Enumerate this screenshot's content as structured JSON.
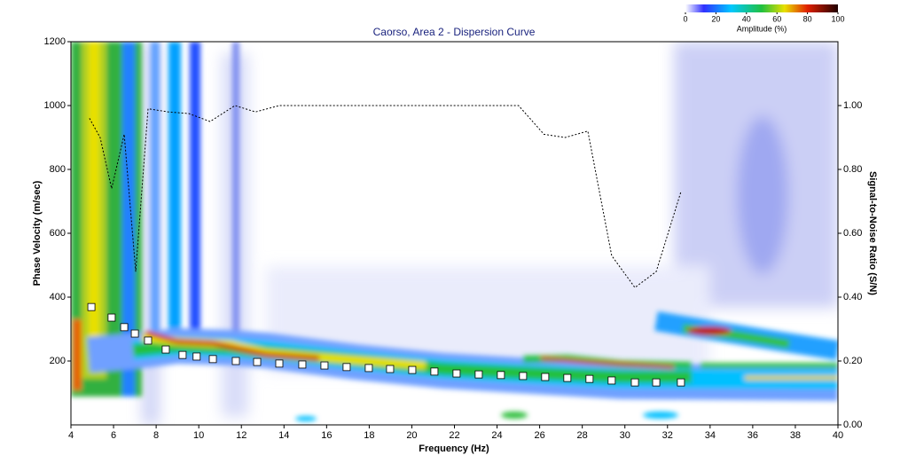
{
  "chart_data": {
    "type": "scatter",
    "title": "Caorso, Area 2 - Dispersion Curve",
    "xlabel": "Frequency (Hz)",
    "ylabel": "Phase Velocity (m/sec)",
    "y2label": "Signal-to-Noise Ratio (S/N)",
    "xlim": [
      4,
      40
    ],
    "xticks": [
      4,
      6,
      8,
      10,
      12,
      14,
      16,
      18,
      20,
      22,
      24,
      26,
      28,
      30,
      32,
      34,
      36,
      38,
      40
    ],
    "ylim": [
      0,
      1200
    ],
    "yticks": [
      200,
      400,
      600,
      800,
      1000,
      1200
    ],
    "y2lim": [
      0,
      1.2
    ],
    "y2ticks": [
      {
        "value": 0,
        "label": "0.00"
      },
      {
        "value": 0.2,
        "label": "0.20"
      },
      {
        "value": 0.4,
        "label": "0.40"
      },
      {
        "value": 0.6,
        "label": "0.60"
      },
      {
        "value": 0.8,
        "label": "0.80"
      },
      {
        "value": 1,
        "label": "1.00"
      }
    ],
    "series": [
      {
        "type": "scatter",
        "color": "#ffffff",
        "x": [
          4.96,
          5.91,
          6.5,
          7.0,
          7.62,
          8.45,
          9.24,
          9.9,
          10.66,
          11.74,
          12.74,
          13.78,
          14.86,
          15.9,
          16.94,
          17.98,
          18.98,
          20.02,
          21.06,
          22.1,
          23.14,
          24.18,
          25.22,
          26.26,
          27.3,
          28.34,
          29.38,
          30.47,
          31.47,
          32.63
        ],
        "values": [
          369,
          336,
          306,
          286,
          264,
          236,
          219,
          214,
          206,
          200,
          197,
          192,
          189,
          186,
          181,
          178,
          175,
          172,
          167,
          161,
          158,
          156,
          153,
          150,
          147,
          144,
          139,
          133,
          133,
          133
        ]
      },
      {
        "type": "line",
        "axis": "y2",
        "color": "#000000",
        "x": [
          4.87,
          5.37,
          5.91,
          6.5,
          7.04,
          7.62,
          8.58,
          9.53,
          10.53,
          11.7,
          12.66,
          13.78,
          25.01,
          26.2,
          27.2,
          28.26,
          29.38,
          30.47,
          31.47,
          32.63
        ],
        "values": [
          0.96,
          0.9,
          0.74,
          0.91,
          0.48,
          0.99,
          0.98,
          0.975,
          0.95,
          1.0,
          0.98,
          1.0,
          1.0,
          0.91,
          0.9,
          0.92,
          0.53,
          0.43,
          0.48,
          0.73
        ]
      }
    ],
    "colorbar": {
      "label": "Amplitude (%)",
      "lim": [
        0,
        100
      ],
      "ticks": [
        0,
        20,
        40,
        60,
        80,
        100
      ]
    }
  }
}
